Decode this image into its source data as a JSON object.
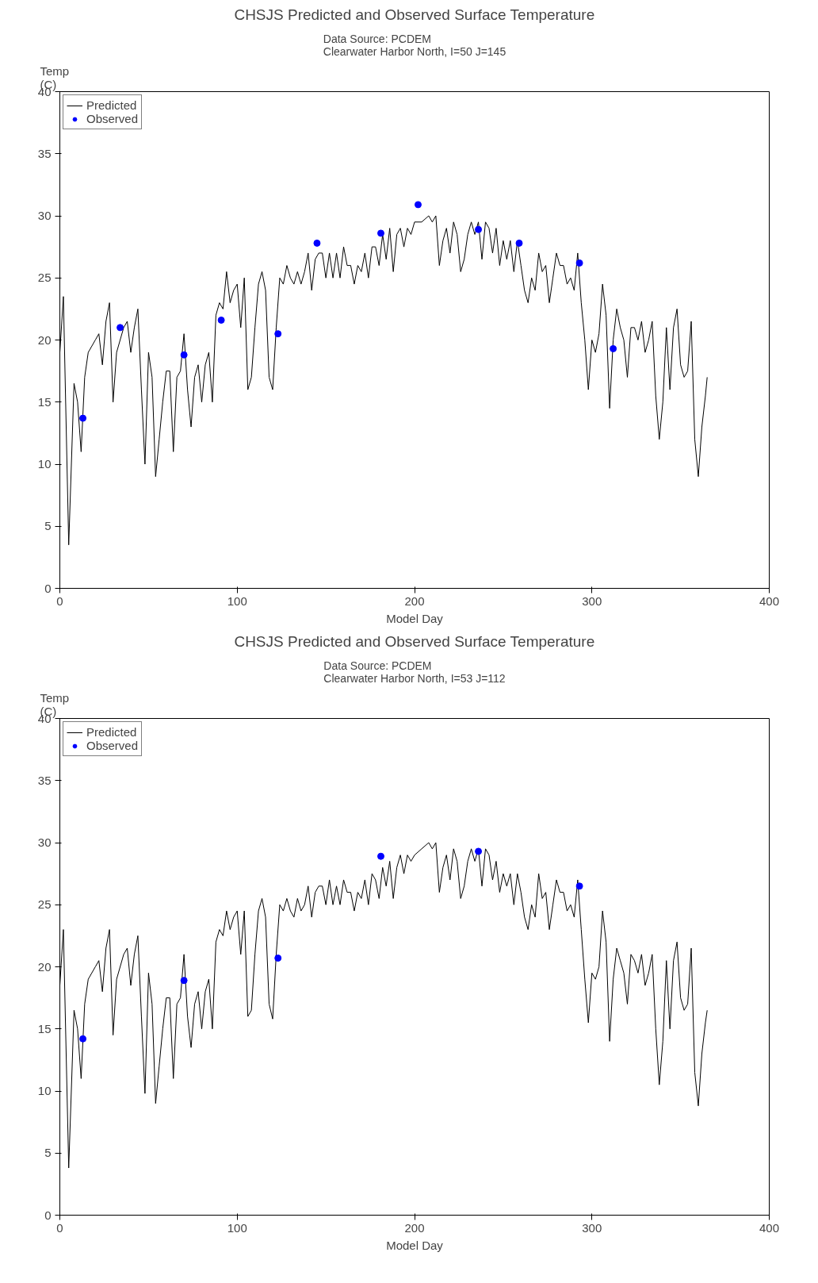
{
  "chart_data": [
    {
      "type": "line",
      "title": "CHSJS Predicted and Observed Surface Temperature",
      "subtitle": "Data Source: PCDEM\nClearwater Harbor North, I=50 J=145",
      "xlabel": "Model Day",
      "ylabel": "Temp\n(C)",
      "xlim": [
        0,
        400
      ],
      "xticks": [
        0,
        100,
        200,
        300,
        400
      ],
      "ylim": [
        0,
        40
      ],
      "yticks": [
        0,
        5,
        10,
        15,
        20,
        25,
        30,
        35,
        40
      ],
      "legend": "top left",
      "grid": false,
      "series": [
        {
          "name": "Predicted",
          "color": "#000000",
          "x": [
            0,
            2,
            5,
            8,
            10,
            12,
            14,
            16,
            20,
            22,
            24,
            26,
            28,
            30,
            32,
            36,
            38,
            40,
            42,
            44,
            46,
            48,
            50,
            52,
            54,
            56,
            58,
            60,
            62,
            64,
            66,
            68,
            70,
            72,
            74,
            76,
            78,
            80,
            82,
            84,
            86,
            88,
            90,
            92,
            94,
            96,
            98,
            100,
            102,
            104,
            106,
            108,
            110,
            112,
            114,
            116,
            118,
            120,
            122,
            124,
            126,
            128,
            130,
            132,
            134,
            136,
            138,
            140,
            142,
            144,
            146,
            148,
            150,
            152,
            154,
            156,
            158,
            160,
            162,
            164,
            166,
            168,
            170,
            172,
            174,
            176,
            178,
            180,
            182,
            184,
            186,
            188,
            190,
            192,
            194,
            196,
            198,
            200,
            204,
            208,
            210,
            212,
            214,
            216,
            218,
            220,
            222,
            224,
            226,
            228,
            230,
            232,
            234,
            236,
            238,
            240,
            242,
            244,
            246,
            248,
            250,
            252,
            254,
            256,
            258,
            260,
            262,
            264,
            266,
            268,
            270,
            272,
            274,
            276,
            278,
            280,
            282,
            284,
            286,
            288,
            290,
            292,
            294,
            296,
            298,
            300,
            302,
            304,
            306,
            308,
            310,
            312,
            314,
            316,
            318,
            320,
            322,
            324,
            326,
            328,
            330,
            332,
            334,
            336,
            338,
            340,
            342,
            344,
            346,
            348,
            350,
            352,
            354,
            356,
            358,
            360,
            362,
            364,
            365
          ],
          "values": [
            19,
            23.5,
            3.5,
            16.5,
            15,
            11,
            17,
            19,
            20,
            20.5,
            18,
            21.5,
            23,
            15,
            19,
            21,
            21.5,
            19,
            21,
            22.5,
            16,
            10,
            19,
            17,
            9,
            12,
            15,
            17.5,
            17.5,
            11,
            17,
            17.5,
            20.5,
            16,
            13,
            17,
            18,
            15,
            18,
            19,
            15,
            22,
            23,
            22.5,
            25.5,
            23,
            24,
            24.5,
            21,
            25,
            16,
            17,
            21,
            24.5,
            25.5,
            24,
            17,
            16,
            21,
            25,
            24.5,
            26,
            25,
            24.5,
            25.5,
            24.5,
            25.5,
            27,
            24,
            26.5,
            27,
            27,
            25,
            27,
            25,
            27,
            25,
            27.5,
            26,
            26,
            24.5,
            26,
            25.5,
            27,
            25,
            27.5,
            27.5,
            26,
            28.5,
            26.5,
            29,
            25.5,
            28.5,
            29,
            27.5,
            29,
            28.5,
            29.5,
            29.5,
            30,
            29.5,
            30,
            26,
            28,
            29,
            27,
            29.5,
            28.5,
            25.5,
            26.5,
            28.5,
            29.5,
            28.5,
            29.5,
            26.5,
            29.5,
            29,
            27,
            29,
            26,
            28,
            26.5,
            28,
            25.5,
            28,
            26,
            24,
            23,
            25,
            24,
            27,
            25.5,
            26,
            23,
            25,
            27,
            26,
            26,
            24.5,
            25,
            24,
            27,
            23,
            20,
            16,
            20,
            19,
            20.5,
            24.5,
            22,
            14.5,
            20,
            22.5,
            21,
            20,
            17,
            21,
            21,
            20,
            21.5,
            19,
            20,
            21.5,
            15.5,
            12,
            15,
            21,
            16,
            21,
            22.5,
            18,
            17,
            17.5,
            21.5,
            12,
            9,
            13,
            15.5,
            17
          ]
        },
        {
          "name": "Observed",
          "type": "scatter",
          "marker": "circle",
          "color": "#0000ff",
          "x": [
            13,
            34,
            70,
            91,
            123,
            145,
            181,
            202,
            236,
            259,
            293,
            312
          ],
          "values": [
            13.7,
            21,
            18.8,
            21.6,
            20.5,
            27.8,
            28.6,
            30.9,
            28.9,
            27.8,
            26.2,
            19.3
          ]
        }
      ]
    },
    {
      "type": "line",
      "title": "CHSJS Predicted and Observed Surface Temperature",
      "subtitle": "Data Source: PCDEM\nClearwater Harbor North, I=53 J=112",
      "xlabel": "Model Day",
      "ylabel": "Temp\n(C)",
      "xlim": [
        0,
        400
      ],
      "xticks": [
        0,
        100,
        200,
        300,
        400
      ],
      "ylim": [
        0,
        40
      ],
      "yticks": [
        0,
        5,
        10,
        15,
        20,
        25,
        30,
        35,
        40
      ],
      "legend": "top left",
      "grid": false,
      "series": [
        {
          "name": "Predicted",
          "color": "#000000",
          "x": [
            0,
            2,
            5,
            8,
            10,
            12,
            14,
            16,
            20,
            22,
            24,
            26,
            28,
            30,
            32,
            36,
            38,
            40,
            42,
            44,
            46,
            48,
            50,
            52,
            54,
            56,
            58,
            60,
            62,
            64,
            66,
            68,
            70,
            72,
            74,
            76,
            78,
            80,
            82,
            84,
            86,
            88,
            90,
            92,
            94,
            96,
            98,
            100,
            102,
            104,
            106,
            108,
            110,
            112,
            114,
            116,
            118,
            120,
            122,
            124,
            126,
            128,
            130,
            132,
            134,
            136,
            138,
            140,
            142,
            144,
            146,
            148,
            150,
            152,
            154,
            156,
            158,
            160,
            162,
            164,
            166,
            168,
            170,
            172,
            174,
            176,
            178,
            180,
            182,
            184,
            186,
            188,
            190,
            192,
            194,
            196,
            198,
            200,
            204,
            208,
            210,
            212,
            214,
            216,
            218,
            220,
            222,
            224,
            226,
            228,
            230,
            232,
            234,
            236,
            238,
            240,
            242,
            244,
            246,
            248,
            250,
            252,
            254,
            256,
            258,
            260,
            262,
            264,
            266,
            268,
            270,
            272,
            274,
            276,
            278,
            280,
            282,
            284,
            286,
            288,
            290,
            292,
            294,
            296,
            298,
            300,
            302,
            304,
            306,
            308,
            310,
            312,
            314,
            316,
            318,
            320,
            322,
            324,
            326,
            328,
            330,
            332,
            334,
            336,
            338,
            340,
            342,
            344,
            346,
            348,
            350,
            352,
            354,
            356,
            358,
            360,
            362,
            364,
            365
          ],
          "values": [
            18.5,
            23,
            3.8,
            16.5,
            15,
            11,
            17,
            19,
            20,
            20.5,
            18,
            21.5,
            23,
            14.5,
            19,
            21,
            21.5,
            18.5,
            21,
            22.5,
            16,
            9.8,
            19.5,
            17,
            9,
            12,
            15,
            17.5,
            17.5,
            11,
            17,
            17.5,
            21,
            16,
            13.5,
            17,
            18,
            15,
            18,
            19,
            15,
            22,
            23,
            22.5,
            24.5,
            23,
            24,
            24.5,
            21,
            24.5,
            16,
            16.5,
            21,
            24.5,
            25.5,
            24,
            17,
            15.8,
            21,
            25,
            24.5,
            25.5,
            24.5,
            24,
            25.5,
            24.5,
            25,
            26.5,
            24,
            26,
            26.5,
            26.5,
            25,
            27,
            25,
            26.5,
            25,
            27,
            26,
            26,
            24.5,
            26,
            25.5,
            27,
            25,
            27.5,
            27,
            25.5,
            28,
            26.5,
            28.5,
            25.5,
            28,
            29,
            27.5,
            29,
            28.5,
            29,
            29.5,
            30,
            29.5,
            30,
            26,
            28,
            29,
            27,
            29.5,
            28.5,
            25.5,
            26.5,
            28.5,
            29.5,
            28.5,
            29.5,
            26.5,
            29.5,
            29,
            27,
            28.5,
            26,
            27.5,
            26.5,
            27.5,
            25,
            27.5,
            26,
            24,
            23,
            25,
            24,
            27.5,
            25.5,
            26,
            23,
            25,
            27,
            26,
            26,
            24.5,
            25,
            24,
            27,
            23,
            19,
            15.5,
            19.5,
            19,
            20,
            24.5,
            22,
            14,
            19,
            21.5,
            20.5,
            19.5,
            17,
            21,
            20.5,
            19.5,
            21,
            18.5,
            19.5,
            21,
            15,
            10.5,
            14,
            20.5,
            15,
            20.5,
            22,
            17.5,
            16.5,
            17,
            21.5,
            11.5,
            8.8,
            13,
            15.5,
            16.5
          ]
        },
        {
          "name": "Observed",
          "type": "scatter",
          "marker": "circle",
          "color": "#0000ff",
          "x": [
            13,
            70,
            123,
            181,
            236,
            293
          ],
          "values": [
            14.2,
            18.9,
            20.7,
            28.9,
            29.3,
            26.5
          ]
        }
      ]
    }
  ]
}
